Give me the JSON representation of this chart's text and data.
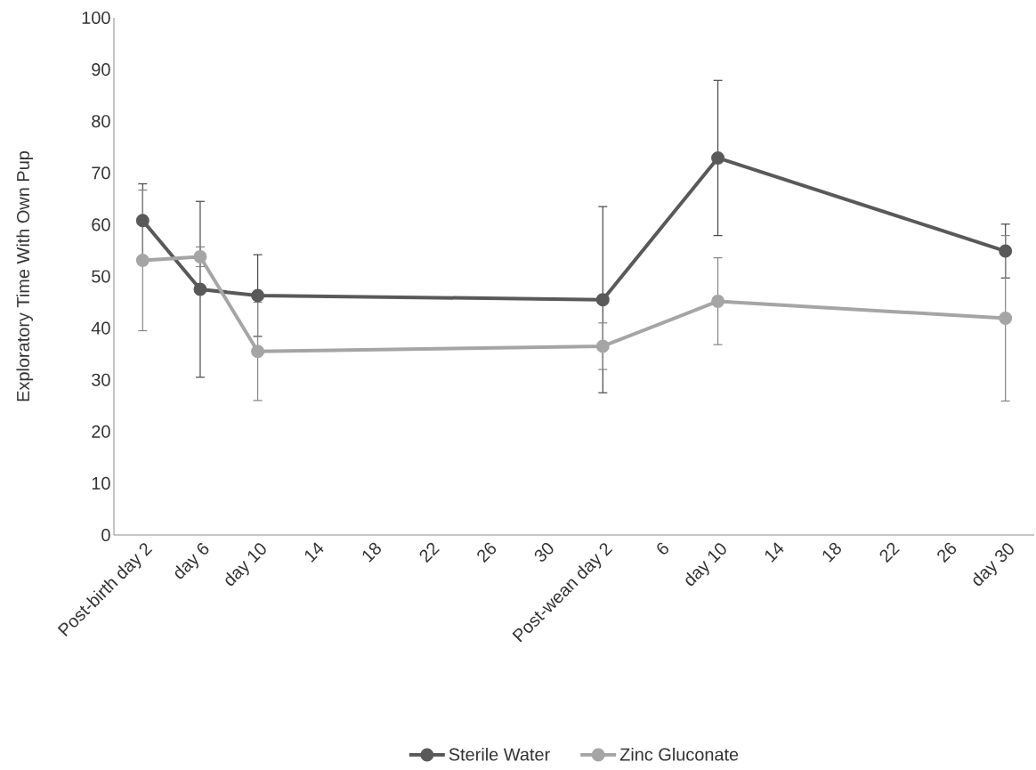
{
  "chart_data": {
    "type": "line",
    "ylabel": "Exploratory Time With Own Pup",
    "categories": [
      "Post-birth day 2",
      "day 6",
      "day 10",
      "14",
      "18",
      "22",
      "26",
      "30",
      "Post-wean day 2",
      "6",
      "day 10",
      "14",
      "18",
      "22",
      "26",
      "day 30"
    ],
    "ylim": [
      0,
      100
    ],
    "yticks": [
      0,
      10,
      20,
      30,
      40,
      50,
      60,
      70,
      80,
      90,
      100
    ],
    "grid": false,
    "legend": "bottom",
    "marker": "circle",
    "line_style": "solid",
    "series": [
      {
        "name": "Sterile Water",
        "color": "#595959",
        "values": [
          60.8,
          47.5,
          46.3,
          null,
          null,
          null,
          null,
          null,
          45.5,
          null,
          72.9,
          null,
          null,
          null,
          null,
          54.9
        ],
        "errors": [
          7.1,
          17,
          7.9,
          null,
          null,
          null,
          null,
          null,
          18,
          null,
          15,
          null,
          null,
          null,
          null,
          5.2
        ]
      },
      {
        "name": "Zinc Gluconate",
        "color": "#a5a5a5",
        "values": [
          53.1,
          53.8,
          35.5,
          null,
          null,
          null,
          null,
          null,
          36.5,
          null,
          45.2,
          null,
          null,
          null,
          null,
          41.9
        ],
        "errors": [
          13.6,
          1.9,
          9.5,
          null,
          null,
          null,
          null,
          null,
          4.5,
          null,
          8.4,
          null,
          null,
          null,
          null,
          16
        ]
      }
    ]
  }
}
